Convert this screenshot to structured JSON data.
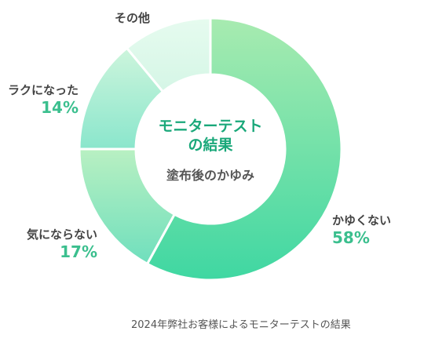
{
  "chart_data": {
    "type": "pie",
    "donut": true,
    "center_title": "モニターテスト\nの結果",
    "center_subtitle": "塗布後のかゆみ",
    "slices": [
      {
        "label": "かゆくない",
        "value": 58,
        "pct_label": "58%",
        "colors": [
          "#a8ebb0",
          "#3fd7a2"
        ]
      },
      {
        "label": "気にならない",
        "value": 17,
        "pct_label": "17%",
        "colors": [
          "#b9f0c2",
          "#6fdfbd"
        ]
      },
      {
        "label": "ラクになった",
        "value": 14,
        "pct_label": "14%",
        "colors": [
          "#cdf5dc",
          "#8ae6cc"
        ]
      },
      {
        "label": "その他",
        "value": 11,
        "pct_label": "",
        "colors": [
          "#e6fbef",
          "#d5f6e6"
        ]
      }
    ]
  },
  "colors": {
    "accent_text": "#1aa87a",
    "pct_text": "#3bbf8e",
    "label_text": "#444444"
  },
  "source_note": "2024年弊社お客様によるモニターテストの結果"
}
